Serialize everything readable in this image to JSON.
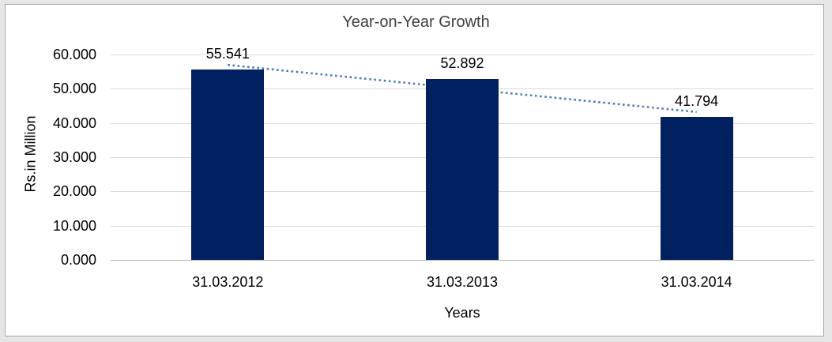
{
  "window": {
    "background": "#e6e6e6",
    "frame_border": "#a6a6a6",
    "frame_background": "#ffffff"
  },
  "chart_data": {
    "type": "bar",
    "title": "Year-on-Year Growth",
    "xlabel": "Years",
    "ylabel": "Rs.in Million",
    "categories": [
      "31.03.2012",
      "31.03.2013",
      "31.03.2014"
    ],
    "values": [
      55.541,
      52.892,
      41.794
    ],
    "data_labels": [
      "55.541",
      "52.892",
      "41.794"
    ],
    "ylim": [
      0,
      60
    ],
    "yticks": [
      0,
      10,
      20,
      30,
      40,
      50,
      60
    ],
    "ytick_labels": [
      "0.000",
      "10.000",
      "20.000",
      "30.000",
      "40.000",
      "50.000",
      "60.000"
    ],
    "grid": true,
    "legend": "none",
    "trendline": {
      "type": "linear",
      "style": "dotted",
      "fitted_start_value": 56.95,
      "fitted_end_value": 43.2
    },
    "colors": {
      "bar": "#002060",
      "trendline": "#4a7ebb",
      "gridline": "#d9d9d9",
      "axis_line": "#b3b3b3",
      "title_text": "#404040",
      "label_text": "#000000"
    }
  }
}
